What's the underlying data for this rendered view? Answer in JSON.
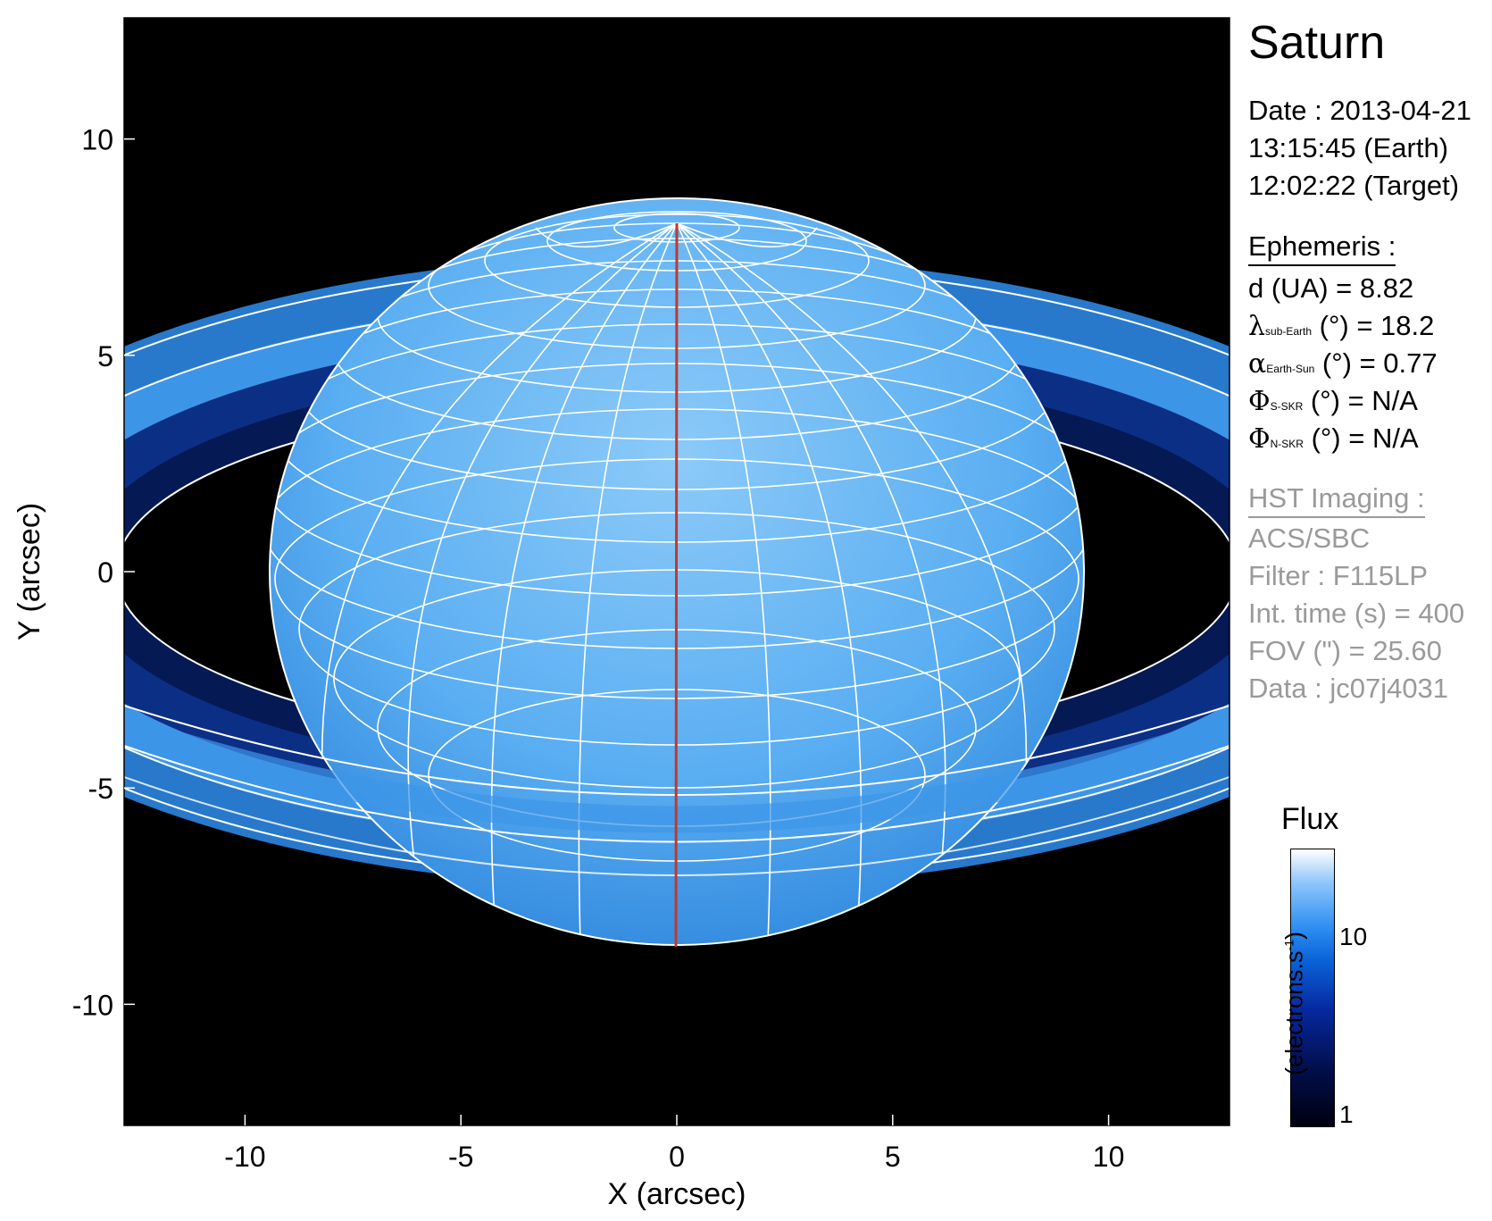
{
  "title": "Saturn",
  "date": {
    "line1": "Date : 2013-04-21",
    "line2": "13:15:45 (Earth)",
    "line3": "12:02:22 (Target)"
  },
  "ephemeris": {
    "header": "Ephemeris :",
    "d": "d (UA)    = 8.82",
    "lambda": {
      "symbol": "λ",
      "sub": "sub-Earth",
      "rest": " (°) = 18.2"
    },
    "alpha": {
      "symbol": "α",
      "sub": "Earth-Sun",
      "rest": " (°) = 0.77"
    },
    "phi_s": {
      "symbol": "Φ",
      "sub": "S-SKR",
      "rest": " (°)   = N/A"
    },
    "phi_n": {
      "symbol": "Φ",
      "sub": "N-SKR",
      "rest": " (°)   = N/A"
    }
  },
  "hst": {
    "header": "HST Imaging :",
    "instrument": "ACS/SBC",
    "filter": "Filter : F115LP",
    "int_time": "Int. time (s) = 400",
    "fov": "FOV (\") = 25.60",
    "data": "Data : jc07j4031"
  },
  "colorbar": {
    "title": "Flux",
    "label": "(electrons.s-1)",
    "label_base": "(electrons.s",
    "label_exp": "-1",
    "label_end": ")",
    "ticks": [
      {
        "label": "10",
        "value": 10
      },
      {
        "label": "1",
        "value": 1
      }
    ]
  },
  "axes": {
    "xlabel": "X (arcsec)",
    "ylabel": "Y (arcsec)",
    "xlim": [
      -12.8,
      12.8
    ],
    "ylim": [
      -12.8,
      12.8
    ],
    "xticks": [
      "-10",
      "-5",
      "0",
      "5",
      "10"
    ],
    "yticks": [
      "10",
      "5",
      "0",
      "-5",
      "-10"
    ]
  },
  "colors": {
    "background": "#000000",
    "planet": "#4aa6f0",
    "grid": "#ffffff",
    "meridian": "#c0392b"
  }
}
